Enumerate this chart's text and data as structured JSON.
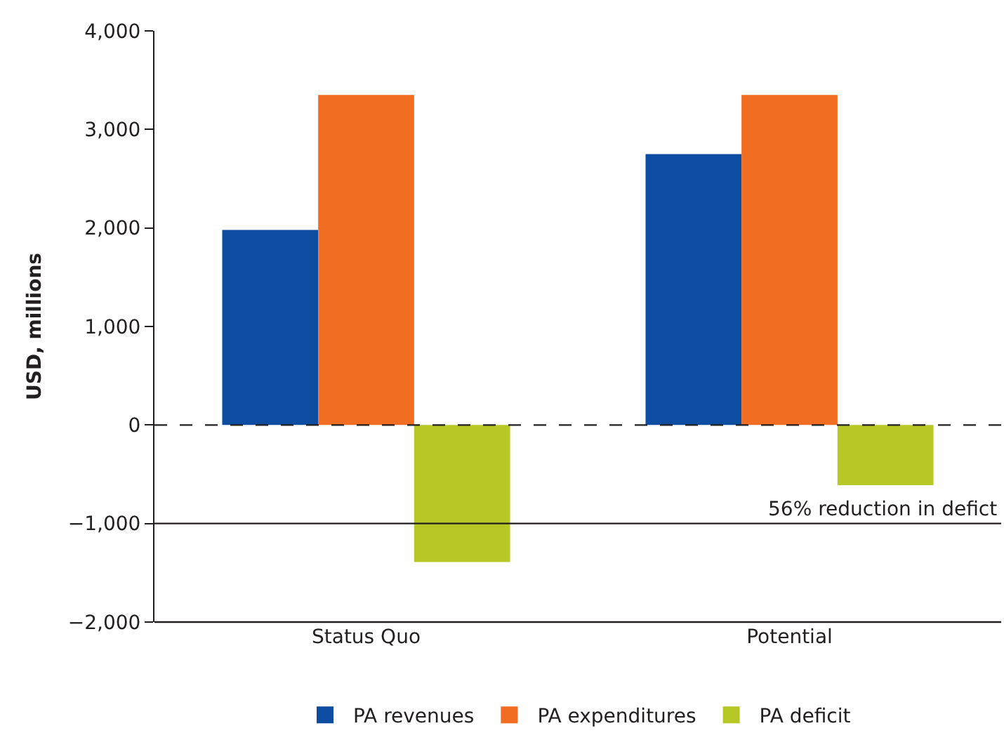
{
  "chart_data": {
    "type": "bar",
    "ylabel": "USD, millions",
    "categories": [
      "Status Quo",
      "Potential"
    ],
    "series": [
      {
        "name": "PA revenues",
        "color": "#0d4da1",
        "values": [
          1980,
          2750
        ]
      },
      {
        "name": "PA expenditures",
        "color": "#f16d22",
        "values": [
          3350,
          3350
        ]
      },
      {
        "name": "PA deficit",
        "color": "#b7c725",
        "values": [
          -1390,
          -610
        ]
      }
    ],
    "ylim": [
      -2000,
      4000
    ],
    "yticks": [
      {
        "value": -2000,
        "label": "−2,000"
      },
      {
        "value": -1000,
        "label": "−1,000"
      },
      0,
      {
        "value": 1000,
        "label": "1,000"
      },
      {
        "value": 2000,
        "label": "2,000"
      },
      {
        "value": 3000,
        "label": "3,000"
      },
      {
        "value": 4000,
        "label": "4,000"
      }
    ],
    "ref_lines": [
      {
        "axis": "y",
        "value": 0,
        "line_style": "dashed",
        "color": "#231f20"
      },
      {
        "axis": "y",
        "value": -1000,
        "line_style": "solid",
        "color": "#231f20",
        "label": "56% reduction in defict"
      }
    ],
    "legend": "bottom"
  }
}
